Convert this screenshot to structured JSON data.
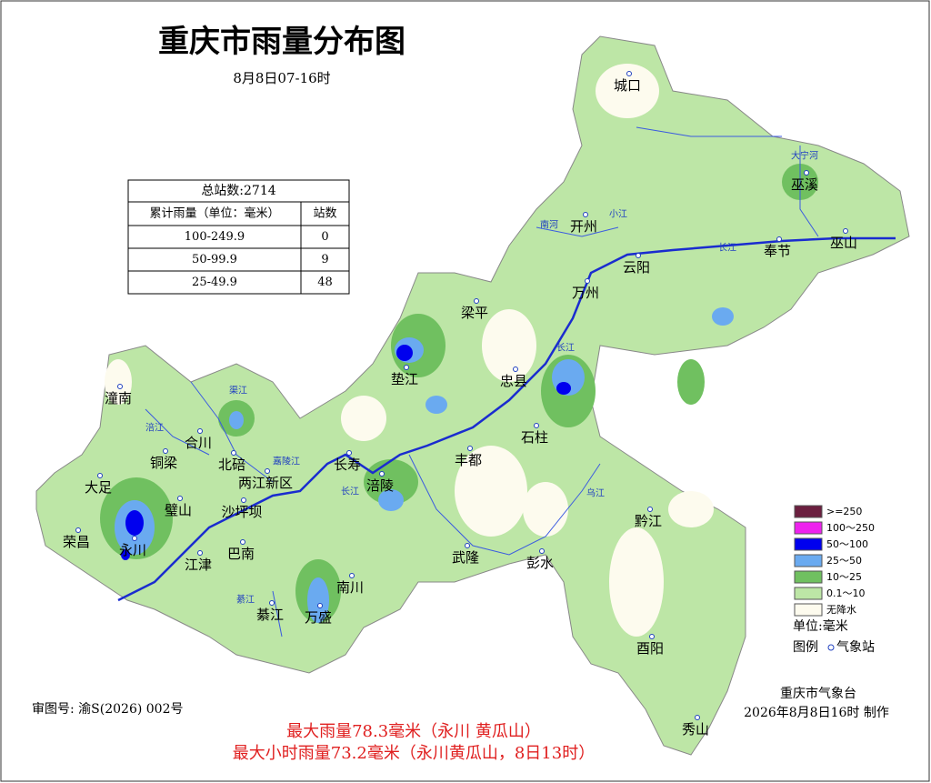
{
  "header": {
    "title": "重庆市雨量分布图",
    "subtitle": "8月8日07-16时"
  },
  "table": {
    "total": "总站数:2714",
    "columns": [
      "累计雨量（单位：毫米）",
      "站数"
    ],
    "rows": [
      [
        "100-249.9",
        0
      ],
      [
        "50-99.9",
        9
      ],
      [
        "25-49.9",
        48
      ]
    ]
  },
  "legend": {
    "items": [
      {
        "label": ">=250",
        "color": "#6b1f3f"
      },
      {
        "label": "100～250",
        "color": "#ee22ee"
      },
      {
        "label": "50～100",
        "color": "#0000ee"
      },
      {
        "label": "25～50",
        "color": "#6aaaf0"
      },
      {
        "label": "10～25",
        "color": "#70c060"
      },
      {
        "label": "0.1～10",
        "color": "#bde6a6"
      },
      {
        "label": "无降水",
        "color": "#fdfbee"
      }
    ],
    "unit": "单位:毫米",
    "key": "图例",
    "station": "气象站"
  },
  "map": {
    "places": [
      "城口",
      "巫溪",
      "开州",
      "云阳",
      "奉节",
      "巫山",
      "万州",
      "梁平",
      "垫江",
      "忠县",
      "石柱",
      "丰都",
      "长寿",
      "涪陵",
      "潼南",
      "合川",
      "铜梁",
      "北碚",
      "两江新区",
      "大足",
      "璧山",
      "沙坪坝",
      "荣昌",
      "永川",
      "江津",
      "巴南",
      "南川",
      "綦江",
      "万盛",
      "武隆",
      "彭水",
      "黔江",
      "酉阳",
      "秀山"
    ],
    "rivers": [
      "大宁河",
      "南河",
      "小江",
      "长江",
      "长江",
      "长江",
      "涪江",
      "渠江",
      "嘉陵江",
      "乌江",
      "綦江"
    ]
  },
  "footer": {
    "approval": "审图号: 渝S(2026) 002号",
    "agency": "重庆市气象台",
    "made": "2026年8月8日16时 制作",
    "max_rain": "最大雨量78.3毫米（永川 黄瓜山）",
    "max_hourly": "最大小时雨量73.2毫米（永川黄瓜山，8日13时）"
  }
}
